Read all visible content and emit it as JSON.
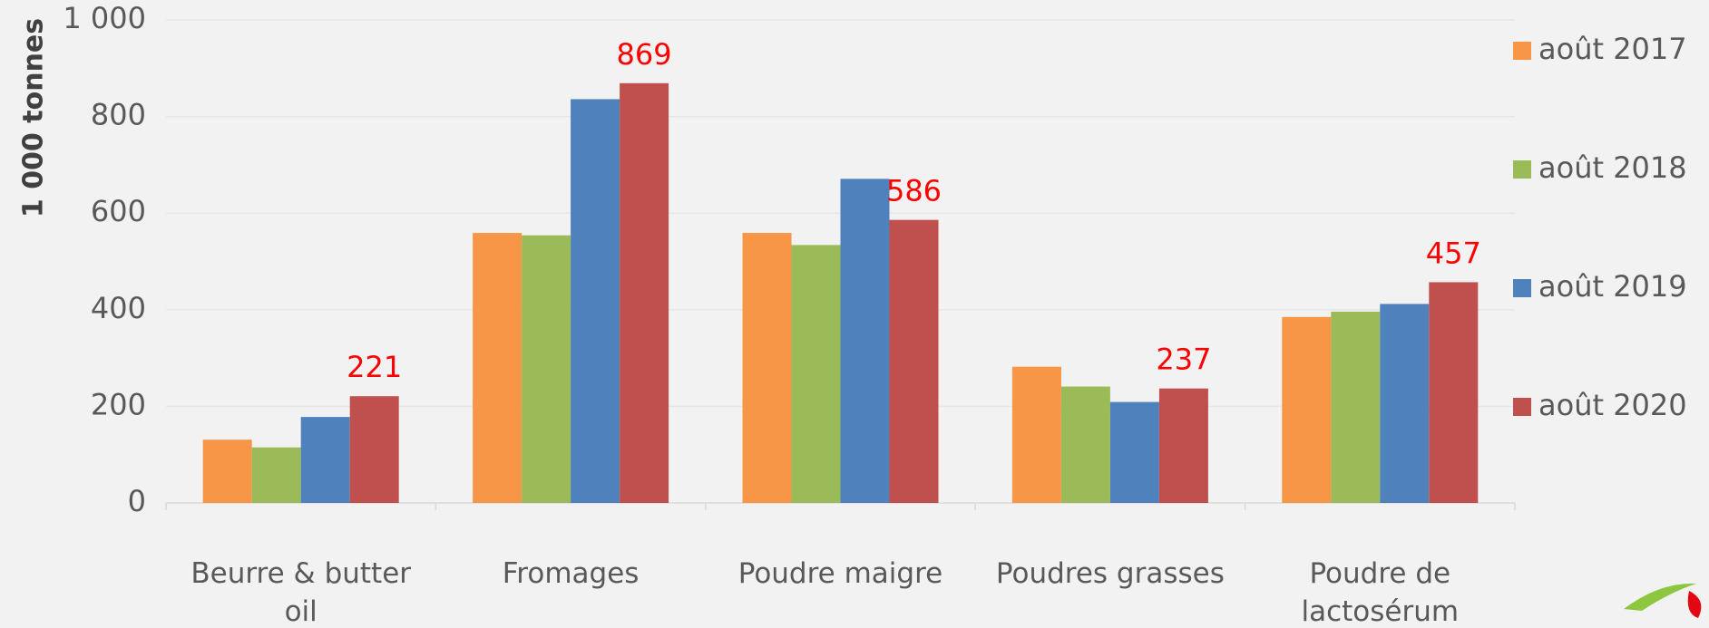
{
  "chart_data": {
    "type": "bar",
    "y_label": "1 000 tonnes",
    "categories": [
      "Beurre & butter oil",
      "Fromages",
      "Poudre maigre",
      "Poudres grasses",
      "Poudre de lactosérum"
    ],
    "series": [
      {
        "name": "août 2017",
        "color": "#f79646",
        "values": [
          131,
          559,
          559,
          282,
          385
        ]
      },
      {
        "name": "août 2018",
        "color": "#9bbb59",
        "values": [
          115,
          554,
          534,
          241,
          396
        ]
      },
      {
        "name": "août 2019",
        "color": "#4f81bd",
        "values": [
          178,
          836,
          671,
          209,
          412
        ]
      },
      {
        "name": "août 2020",
        "color": "#c0504d",
        "values": [
          221,
          869,
          586,
          237,
          457
        ],
        "data_labels": true,
        "label_color": "#ff0000"
      }
    ],
    "ylim": [
      0,
      1000
    ],
    "yticks": [
      0,
      200,
      400,
      600,
      800,
      {
        "value": 1000,
        "label": "1 000"
      }
    ],
    "grid": true,
    "legend": "right"
  }
}
